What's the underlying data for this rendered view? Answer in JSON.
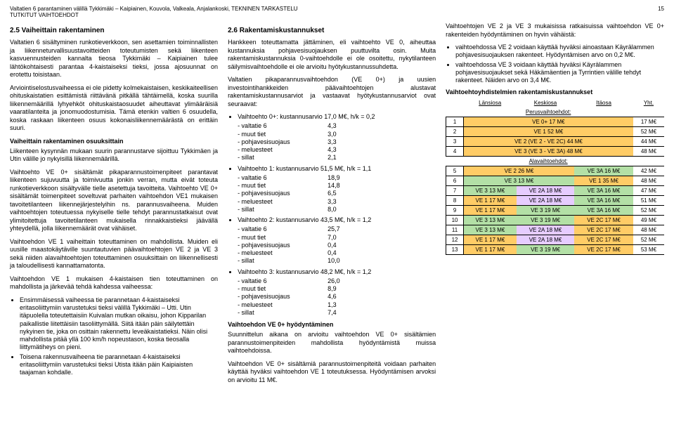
{
  "header": {
    "left": "Valtatien 6 parantaminen välillä Tykkimäki – Kaipiainen, Kouvola, Valkeala, Anjalankoski, TEKNINEN TARKASTELU",
    "sub": "TUTKITUT VAIHTOEHDOT",
    "page": "15"
  },
  "col1": {
    "h": "2.5 Vaiheittain rakentaminen",
    "p1": "Valtatien 6 sisältyminen runkotieverkkoon, sen asettamien toiminnallisten ja liikenneturvallisuustavoitteiden toteutumisten sekä liikenteen kasvuennusteiden kannalta tieosa Tykkimäki – Kaipiainen tulee lähtökohtaisesti parantaa 4-kaistaiseksi tieksi, jossa ajosuunnat on erotettu toisistaan.",
    "p2": "Arviointiselostusvaiheessa ei ole pidetty kolmekaistaisen, keskikaiteellisen ohituskaistatien esittämistä riittävänä pitkällä tähtäimellä, koska suurilla liikennemäärillä lyhyehköt ohituskaistaosuudet aiheuttavat ylimääräisiä vaaratilanteita ja jonomuodostumisia. Tämä etenkin valtien 6 osuudella, koska raskaan liikenteen osuus kokonaisliikennemäärästä on erittäin suuri.",
    "sub1": "Vaiheittain rakentaminen osuuksittain",
    "p3": "Liikenteen kysynnän mukaan suurin parannustarve sijoittuu Tykkimäen ja Utin välille jo nykyisillä liikennemäärillä.",
    "p4": "Vaihtoehto VE 0+ sisältämät pikaparannustoimenpiteet parantavat liikenteen sujuvuutta ja toimivuutta jonkin verran, mutta eivät toteuta runkotieverkkoon sisältyvälle tielle asetettuja tavoitteita. Vaihtoehto VE 0+ sisältämät toimenpiteet soveltuvat parhaiten vaihtoehdon VE1 mukaisen tavoitetilanteen liikennejärjestelyihin ns. parannusvaiheena. Muiden vaihtoehtojen toteutuessa nykyiselle tielle tehdyt parannustatkaisut ovat ylimitoitettuja tavoitetilanteen mukaisella rinnakkaistieksi jäävällä yhteydellä, jolla liikennemäärät ovat vähäiset.",
    "p5": "Vaihtoehdon VE 1 vaiheittain toteuttaminen on mahdollista. Muiden eli uusille maastokäytäville suuntautuvien päävaihtoehtojen VE 2 ja VE 3 sekä niiden alavaihtoehtojen toteuttaminen osuuksittain on liikennellisesti ja taloudellisesti kannattamatonta.",
    "p6": "Vaihtoehdon VE 1 mukaisen 4-kaistaisen tien toteuttaminen on mahdollista ja järkevää tehdä kahdessa vaiheessa:",
    "b1": "Ensimmäisessä vaiheessa tie parannetaan 4-kaistaiseksi eritasoliittymiin varustetuksi tieksi välillä Tykkimäki – Utti. Utin itäpuolella toteutettaisiin Kuivalan mutkan oikaisu, johon Kipparilan paikallistie liitettäisiin tasoliittymällä. Siitä itään päin säilytettäin nykyinen tie, joka on osittain rakennettu leveäkaistatieksi. Näin olisi mahdollista pitää yllä 100 km/h nopeustason, koska tieosalla liittymätiheys on pieni.",
    "b2": "Toisena rakennusvaiheena tie parannetaan 4-kaistaiseksi eritasoliittymiin varustetuksi tieksi Utista itään päin Kaipiaisten taajaman kohdalle."
  },
  "col2": {
    "h": "2.6 Rakentamiskustannukset",
    "p1": "Hankkeen toteuttamatta jättäminen, eli vaihtoehto VE 0, aiheuttaa kustannuksia pohjavesisuojauksen puuttuvilta osin. Muita rakentamiskustannuksia 0-vaihtoehdolle ei ole osoitettu, nykytilanteen säilymisvaihtoehdolle ei ole arvioitu hyötykustannussuhdetta.",
    "p2": "Valtatien pikaparannusvaihtoehdon (VE 0+) ja uusien investointihankkeiden päävaihtoehtojen alustavat rakentamiskustannusarviot ja vastaavat hyötykustannusarviot ovat seuraavat:",
    "ve0p": {
      "t": "Vaihtoehto 0+: kustannusarvio 17,0 M€, h/k = 0,2",
      "rows": [
        [
          "- valtatie 6",
          "4,3"
        ],
        [
          "- muut tiet",
          "3,0"
        ],
        [
          "- pohjavesisuojaus",
          "3,3"
        ],
        [
          "- meluesteet",
          "4,3"
        ],
        [
          "- sillat",
          "2,1"
        ]
      ]
    },
    "ve1": {
      "t": "Vaihtoehto 1:    kustannusarvio 51,5 M€, h/k = 1,1",
      "rows": [
        [
          "- valtatie 6",
          "18,9"
        ],
        [
          "- muut tiet",
          "14,8"
        ],
        [
          "- pohjavesisuojaus",
          "6,5"
        ],
        [
          "- meluesteet",
          "3,3"
        ],
        [
          "- sillat",
          "8,0"
        ]
      ]
    },
    "ve2": {
      "t": "Vaihtoehto 2:    kustannusarvio 43,5 M€, h/k = 1,2",
      "rows": [
        [
          "- valtatie 6",
          "25,7"
        ],
        [
          "- muut tiet",
          "7,0"
        ],
        [
          "- pohjavesisuojaus",
          "0,4"
        ],
        [
          "- meluesteet",
          "0,4"
        ],
        [
          "- sillat",
          "10,0"
        ]
      ]
    },
    "ve3": {
      "t": "Vaihtoehto 3: kustannusarvio 48,2 M€, h/k = 1,2",
      "rows": [
        [
          "- valtatie 6",
          "26,0"
        ],
        [
          "- muut tiet",
          "8,9"
        ],
        [
          "- pohjavesisuojaus",
          "4,6"
        ],
        [
          "- meluesteet",
          "1,3"
        ],
        [
          "- sillat",
          "7,4"
        ]
      ]
    },
    "sub": "Vaihtoehdon VE 0+ hyödyntäminen",
    "p3": "Suunnittelun aikana on arvioitu vaihtoehdon VE 0+ sisältämien parannustoimenpiteiden mahdollista hyödyntämistä muissa vaihtoehdoissa.",
    "p4": "Vaihtoehdon VE 0+ sisältämiä parannustoimenpiteitä voidaan parhaiten käyttää hyväksi vaihtoehdon VE 1 toteutuksessa. Hyödyntämisen arvoksi on arvioitu 11 M€."
  },
  "col3": {
    "p1": "Vaihtoehtojen VE 2 ja VE 3 mukaisissa ratkaisuissa vaihtoehdon VE 0+ rakenteiden hyödyntäminen on hyvin vähäistä:",
    "b1": "vaihtoehdossa VE 2 voidaan käyttää hyväksi ainoastaan Käyrälammen pohjavesisuojauksen rakenteet. Hyödyntämisen arvo on 0,2 M€.",
    "b2": "vaihtoehdossa VE 3 voidaan käyttää hyväksi Käyrälammen pohjavesisuojaukset sekä Häkämäentien ja Tyrrintien välille tehdyt rakenteet. Näiden arvo on 3,4 M€.",
    "sub": "Vaihtoehtoyhdistelmien rakentamiskustannukset",
    "tbl": {
      "hdr": [
        "",
        "Länsiosa",
        "Keskiosa",
        "Itäosa",
        "Yht."
      ],
      "perus": "Perusvaihtoehdot:",
      "rows": [
        {
          "n": "1",
          "a": "VE 0+  17 M€",
          "b": "",
          "c": "",
          "t": "17 M€",
          "ca": "y"
        },
        {
          "n": "2",
          "a": "VE 1  52 M€",
          "b": "",
          "c": "",
          "t": "52 M€",
          "ca": "y"
        },
        {
          "n": "3",
          "a": "VE 2 (VE 2 - VE 2C)  44 M€",
          "b": "",
          "c": "",
          "t": "44 M€",
          "ca": "y"
        },
        {
          "n": "4",
          "a": "VE 3 (VE 3 - VE 3A)  48 M€",
          "b": "",
          "c": "",
          "t": "48 M€",
          "ca": "y"
        }
      ],
      "ala": "Alavaihtoehdot:",
      "rows2": [
        {
          "n": "5",
          "a": "VE 2  26 M€",
          "b": "",
          "c": "VE 3A  16 M€",
          "t": "42 M€",
          "ca": "y",
          "cc": "g"
        },
        {
          "n": "6",
          "a": "VE 3  13 M€",
          "b": "",
          "c": "VE 1  35 M€",
          "t": "48 M€",
          "ca": "g",
          "cc": "y"
        },
        {
          "n": "7",
          "a": "VE 3  13 M€",
          "b": "VE 2A  18 M€",
          "c": "VE 3A  16 M€",
          "t": "47 M€",
          "ca": "g",
          "cb": "p",
          "cc": "g"
        },
        {
          "n": "8",
          "a": "VE 1  17 M€",
          "b": "VE 2A  18 M€",
          "c": "VE 3A  16 M€",
          "t": "51 M€",
          "ca": "y",
          "cb": "p",
          "cc": "g"
        },
        {
          "n": "9",
          "a": "VE 1  17 M€",
          "b": "VE 3  19 M€",
          "c": "VE 3A  16 M€",
          "t": "52 M€",
          "ca": "y",
          "cb": "g",
          "cc": "g"
        },
        {
          "n": "10",
          "a": "VE 3  13 M€",
          "b": "VE 3  19 M€",
          "c": "VE 2C  17 M€",
          "t": "49 M€",
          "ca": "g",
          "cb": "g",
          "cc": "y"
        },
        {
          "n": "11",
          "a": "VE 3  13 M€",
          "b": "VE 2A  18 M€",
          "c": "VE 2C  17 M€",
          "t": "48 M€",
          "ca": "g",
          "cb": "p",
          "cc": "y"
        },
        {
          "n": "12",
          "a": "VE 1  17 M€",
          "b": "VE 2A  18 M€",
          "c": "VE 2C  17 M€",
          "t": "52 M€",
          "ca": "y",
          "cb": "p",
          "cc": "y"
        },
        {
          "n": "13",
          "a": "VE 1  17 M€",
          "b": "VE 3  19 M€",
          "c": "VE 2C  17 M€",
          "t": "53 M€",
          "ca": "y",
          "cb": "g",
          "cc": "y"
        }
      ]
    }
  }
}
